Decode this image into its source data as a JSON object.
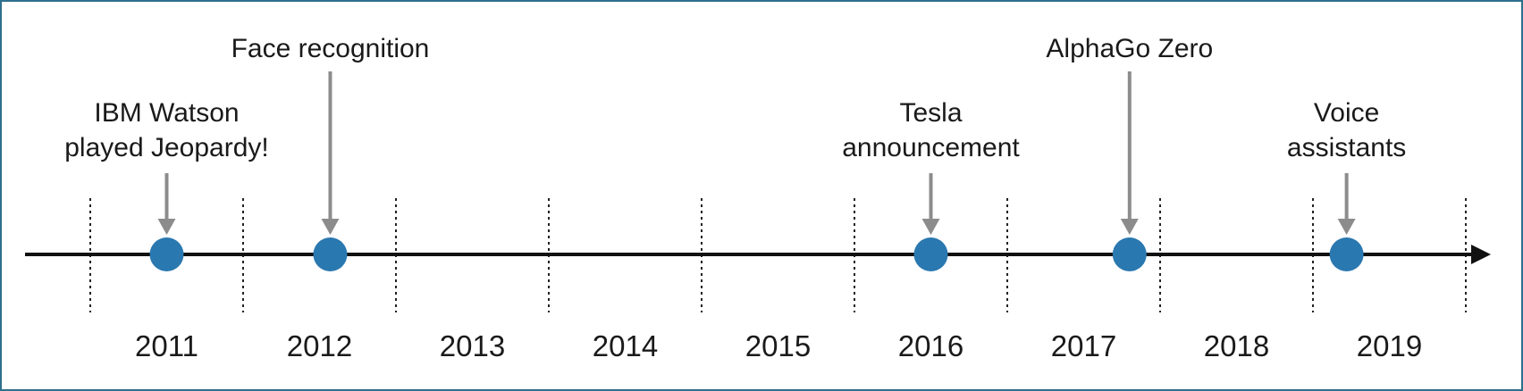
{
  "diagram": {
    "years": [
      "2011",
      "2012",
      "2013",
      "2014",
      "2015",
      "2016",
      "2017",
      "2018",
      "2019"
    ],
    "events": [
      {
        "id": "ibm-watson",
        "lines": [
          "IBM Watson",
          "played Jeopardy!"
        ],
        "time": 2011.5
      },
      {
        "id": "face-recognition",
        "lines": [
          "Face recognition"
        ],
        "time": 2012.57
      },
      {
        "id": "tesla",
        "lines": [
          "Tesla",
          "announcement"
        ],
        "time": 2016.5
      },
      {
        "id": "alphago-zero",
        "lines": [
          "AlphaGo Zero"
        ],
        "time": 2017.8
      },
      {
        "id": "voice-assistants",
        "lines": [
          "Voice",
          "assistants"
        ],
        "time": 2019.22
      }
    ],
    "colors": {
      "axis": "#111111",
      "dot": "#2a78b0",
      "pointer": "#8c8c8c",
      "tick": "#222222",
      "border": "#2e6f8e",
      "text": "#1a1a1a"
    }
  }
}
